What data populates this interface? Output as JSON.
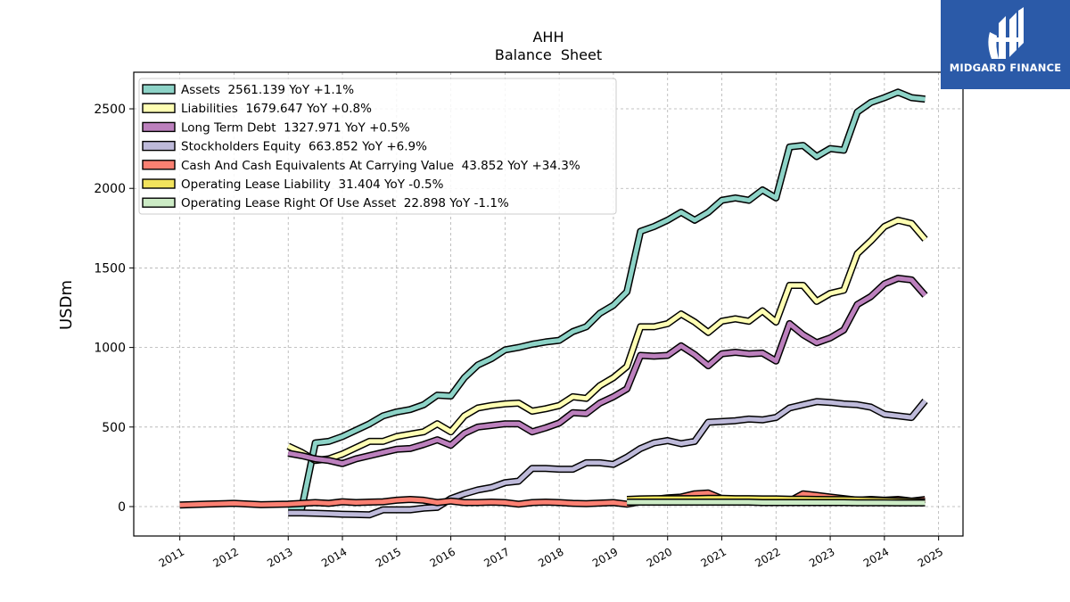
{
  "brand": {
    "name": "MIDGARD FINANCE",
    "bg": "#2b5aa8"
  },
  "chart_data": {
    "type": "line",
    "title": "AHH",
    "subtitle": "Balance  Sheet",
    "xlabel": "",
    "ylabel": "USDm",
    "xlim": [
      2010.15,
      2025.45
    ],
    "ylim": [
      -185,
      2730
    ],
    "yticks": [
      0,
      500,
      1000,
      1500,
      2000,
      2500
    ],
    "xticks": [
      "2011",
      "2012",
      "2013",
      "2014",
      "2015",
      "2016",
      "2017",
      "2018",
      "2019",
      "2020",
      "2021",
      "2022",
      "2023",
      "2024",
      "2025"
    ],
    "grid": true,
    "legend_position": "top-left",
    "series": [
      {
        "name": "Assets",
        "legend": "Assets  2561.139 YoY +1.1%",
        "color": "#8dd3c7",
        "points": [
          [
            2013.0,
            -10
          ],
          [
            2013.25,
            -10
          ],
          [
            2013.5,
            400
          ],
          [
            2013.75,
            410
          ],
          [
            2014.0,
            440
          ],
          [
            2014.25,
            480
          ],
          [
            2014.5,
            520
          ],
          [
            2014.75,
            570
          ],
          [
            2015.0,
            595
          ],
          [
            2015.25,
            610
          ],
          [
            2015.5,
            640
          ],
          [
            2015.75,
            700
          ],
          [
            2016.0,
            695
          ],
          [
            2016.25,
            810
          ],
          [
            2016.5,
            890
          ],
          [
            2016.75,
            930
          ],
          [
            2017.0,
            985
          ],
          [
            2017.25,
            1000
          ],
          [
            2017.5,
            1020
          ],
          [
            2017.75,
            1035
          ],
          [
            2018.0,
            1045
          ],
          [
            2018.25,
            1100
          ],
          [
            2018.5,
            1130
          ],
          [
            2018.75,
            1215
          ],
          [
            2019.0,
            1265
          ],
          [
            2019.25,
            1350
          ],
          [
            2019.5,
            1730
          ],
          [
            2019.75,
            1760
          ],
          [
            2020.0,
            1800
          ],
          [
            2020.25,
            1850
          ],
          [
            2020.5,
            1800
          ],
          [
            2020.75,
            1850
          ],
          [
            2021.0,
            1925
          ],
          [
            2021.25,
            1940
          ],
          [
            2021.5,
            1925
          ],
          [
            2021.75,
            1990
          ],
          [
            2022.0,
            1940
          ],
          [
            2022.25,
            2260
          ],
          [
            2022.5,
            2270
          ],
          [
            2022.75,
            2200
          ],
          [
            2023.0,
            2250
          ],
          [
            2023.25,
            2240
          ],
          [
            2023.5,
            2480
          ],
          [
            2023.75,
            2540
          ],
          [
            2024.0,
            2570
          ],
          [
            2024.25,
            2605
          ],
          [
            2024.5,
            2570
          ],
          [
            2024.75,
            2561
          ]
        ]
      },
      {
        "name": "Liabilities",
        "legend": "Liabilities  1679.647 YoY +0.8%",
        "color": "#ffffb3",
        "points": [
          [
            2013.0,
            380
          ],
          [
            2013.25,
            340
          ],
          [
            2013.5,
            290
          ],
          [
            2013.75,
            300
          ],
          [
            2014.0,
            330
          ],
          [
            2014.25,
            370
          ],
          [
            2014.5,
            410
          ],
          [
            2014.75,
            410
          ],
          [
            2015.0,
            440
          ],
          [
            2015.25,
            455
          ],
          [
            2015.5,
            470
          ],
          [
            2015.75,
            520
          ],
          [
            2016.0,
            470
          ],
          [
            2016.25,
            570
          ],
          [
            2016.5,
            620
          ],
          [
            2016.75,
            635
          ],
          [
            2017.0,
            645
          ],
          [
            2017.25,
            650
          ],
          [
            2017.5,
            600
          ],
          [
            2017.75,
            615
          ],
          [
            2018.0,
            635
          ],
          [
            2018.25,
            690
          ],
          [
            2018.5,
            680
          ],
          [
            2018.75,
            760
          ],
          [
            2019.0,
            810
          ],
          [
            2019.25,
            880
          ],
          [
            2019.5,
            1130
          ],
          [
            2019.75,
            1130
          ],
          [
            2020.0,
            1150
          ],
          [
            2020.25,
            1210
          ],
          [
            2020.5,
            1160
          ],
          [
            2020.75,
            1095
          ],
          [
            2021.0,
            1165
          ],
          [
            2021.25,
            1180
          ],
          [
            2021.5,
            1165
          ],
          [
            2021.75,
            1230
          ],
          [
            2022.0,
            1160
          ],
          [
            2022.25,
            1390
          ],
          [
            2022.5,
            1390
          ],
          [
            2022.75,
            1290
          ],
          [
            2023.0,
            1340
          ],
          [
            2023.25,
            1360
          ],
          [
            2023.5,
            1590
          ],
          [
            2023.75,
            1670
          ],
          [
            2024.0,
            1760
          ],
          [
            2024.25,
            1800
          ],
          [
            2024.5,
            1780
          ],
          [
            2024.75,
            1680
          ]
        ]
      },
      {
        "name": "Long Term Debt",
        "legend": "Long Term Debt  1327.971 YoY +0.5%",
        "color": "#bc80bd",
        "points": [
          [
            2013.0,
            335
          ],
          [
            2013.25,
            320
          ],
          [
            2013.5,
            300
          ],
          [
            2013.75,
            290
          ],
          [
            2014.0,
            270
          ],
          [
            2014.25,
            300
          ],
          [
            2014.5,
            320
          ],
          [
            2014.75,
            340
          ],
          [
            2015.0,
            360
          ],
          [
            2015.25,
            365
          ],
          [
            2015.5,
            390
          ],
          [
            2015.75,
            420
          ],
          [
            2016.0,
            385
          ],
          [
            2016.25,
            460
          ],
          [
            2016.5,
            500
          ],
          [
            2016.75,
            510
          ],
          [
            2017.0,
            520
          ],
          [
            2017.25,
            520
          ],
          [
            2017.5,
            470
          ],
          [
            2017.75,
            495
          ],
          [
            2018.0,
            525
          ],
          [
            2018.25,
            590
          ],
          [
            2018.5,
            585
          ],
          [
            2018.75,
            650
          ],
          [
            2019.0,
            690
          ],
          [
            2019.25,
            740
          ],
          [
            2019.5,
            950
          ],
          [
            2019.75,
            945
          ],
          [
            2020.0,
            950
          ],
          [
            2020.25,
            1010
          ],
          [
            2020.5,
            955
          ],
          [
            2020.75,
            885
          ],
          [
            2021.0,
            960
          ],
          [
            2021.25,
            970
          ],
          [
            2021.5,
            960
          ],
          [
            2021.75,
            965
          ],
          [
            2022.0,
            915
          ],
          [
            2022.25,
            1150
          ],
          [
            2022.5,
            1080
          ],
          [
            2022.75,
            1030
          ],
          [
            2023.0,
            1060
          ],
          [
            2023.25,
            1110
          ],
          [
            2023.5,
            1270
          ],
          [
            2023.75,
            1320
          ],
          [
            2024.0,
            1400
          ],
          [
            2024.25,
            1435
          ],
          [
            2024.5,
            1425
          ],
          [
            2024.75,
            1328
          ]
        ]
      },
      {
        "name": "Stockholders Equity",
        "legend": "Stockholders Equity  663.852 YoY +6.9%",
        "color": "#bebada",
        "points": [
          [
            2013.0,
            -40
          ],
          [
            2013.25,
            -40
          ],
          [
            2013.5,
            -42
          ],
          [
            2013.75,
            -45
          ],
          [
            2014.0,
            -48
          ],
          [
            2014.25,
            -50
          ],
          [
            2014.5,
            -52
          ],
          [
            2014.75,
            -20
          ],
          [
            2015.0,
            -20
          ],
          [
            2015.25,
            -20
          ],
          [
            2015.5,
            -10
          ],
          [
            2015.75,
            -5
          ],
          [
            2016.0,
            50
          ],
          [
            2016.25,
            80
          ],
          [
            2016.5,
            105
          ],
          [
            2016.75,
            120
          ],
          [
            2017.0,
            150
          ],
          [
            2017.25,
            160
          ],
          [
            2017.5,
            240
          ],
          [
            2017.75,
            240
          ],
          [
            2018.0,
            235
          ],
          [
            2018.25,
            235
          ],
          [
            2018.5,
            275
          ],
          [
            2018.75,
            275
          ],
          [
            2019.0,
            265
          ],
          [
            2019.25,
            310
          ],
          [
            2019.5,
            365
          ],
          [
            2019.75,
            400
          ],
          [
            2020.0,
            415
          ],
          [
            2020.25,
            395
          ],
          [
            2020.5,
            410
          ],
          [
            2020.75,
            530
          ],
          [
            2021.0,
            535
          ],
          [
            2021.25,
            540
          ],
          [
            2021.5,
            550
          ],
          [
            2021.75,
            545
          ],
          [
            2022.0,
            560
          ],
          [
            2022.25,
            620
          ],
          [
            2022.5,
            640
          ],
          [
            2022.75,
            660
          ],
          [
            2023.0,
            655
          ],
          [
            2023.25,
            645
          ],
          [
            2023.5,
            640
          ],
          [
            2023.75,
            625
          ],
          [
            2024.0,
            580
          ],
          [
            2024.25,
            570
          ],
          [
            2024.5,
            560
          ],
          [
            2024.75,
            664
          ]
        ]
      },
      {
        "name": "Cash And Cash Equivalents At Carrying Value",
        "legend": "Cash And Cash Equivalents At Carrying Value  43.852 YoY +34.3%",
        "color": "#fb8072",
        "points": [
          [
            2011.0,
            10
          ],
          [
            2011.5,
            15
          ],
          [
            2012.0,
            20
          ],
          [
            2012.5,
            12
          ],
          [
            2013.0,
            15
          ],
          [
            2013.25,
            20
          ],
          [
            2013.5,
            25
          ],
          [
            2013.75,
            20
          ],
          [
            2014.0,
            30
          ],
          [
            2014.25,
            25
          ],
          [
            2014.5,
            28
          ],
          [
            2014.75,
            30
          ],
          [
            2015.0,
            40
          ],
          [
            2015.25,
            45
          ],
          [
            2015.5,
            40
          ],
          [
            2015.75,
            25
          ],
          [
            2016.0,
            35
          ],
          [
            2016.25,
            25
          ],
          [
            2016.5,
            25
          ],
          [
            2016.75,
            28
          ],
          [
            2017.0,
            25
          ],
          [
            2017.25,
            15
          ],
          [
            2017.5,
            25
          ],
          [
            2017.75,
            28
          ],
          [
            2018.0,
            25
          ],
          [
            2018.25,
            20
          ],
          [
            2018.5,
            18
          ],
          [
            2018.75,
            22
          ],
          [
            2019.0,
            25
          ],
          [
            2019.25,
            15
          ],
          [
            2019.5,
            30
          ],
          [
            2019.75,
            45
          ],
          [
            2020.0,
            55
          ],
          [
            2020.25,
            60
          ],
          [
            2020.5,
            80
          ],
          [
            2020.75,
            85
          ],
          [
            2021.0,
            50
          ],
          [
            2021.25,
            40
          ],
          [
            2021.5,
            45
          ],
          [
            2021.75,
            35
          ],
          [
            2022.0,
            40
          ],
          [
            2022.25,
            35
          ],
          [
            2022.5,
            80
          ],
          [
            2022.75,
            70
          ],
          [
            2023.0,
            60
          ],
          [
            2023.25,
            50
          ],
          [
            2023.5,
            40
          ],
          [
            2023.75,
            45
          ],
          [
            2024.0,
            40
          ],
          [
            2024.25,
            45
          ],
          [
            2024.5,
            35
          ],
          [
            2024.75,
            44
          ]
        ]
      },
      {
        "name": "Operating Lease Liability",
        "legend": "Operating Lease Liability  31.404 YoY -0.5%",
        "color": "#f2e35c",
        "points": [
          [
            2019.25,
            45
          ],
          [
            2019.5,
            48
          ],
          [
            2019.75,
            50
          ],
          [
            2020.0,
            50
          ],
          [
            2020.25,
            50
          ],
          [
            2020.5,
            50
          ],
          [
            2020.75,
            52
          ],
          [
            2021.0,
            52
          ],
          [
            2021.25,
            50
          ],
          [
            2021.5,
            50
          ],
          [
            2021.75,
            48
          ],
          [
            2022.0,
            48
          ],
          [
            2022.25,
            46
          ],
          [
            2022.5,
            46
          ],
          [
            2022.75,
            45
          ],
          [
            2023.0,
            44
          ],
          [
            2023.25,
            44
          ],
          [
            2023.5,
            42
          ],
          [
            2023.75,
            40
          ],
          [
            2024.0,
            38
          ],
          [
            2024.25,
            35
          ],
          [
            2024.5,
            33
          ],
          [
            2024.75,
            31
          ]
        ]
      },
      {
        "name": "Operating Lease Right Of Use Asset",
        "legend": "Operating Lease Right Of Use Asset  22.898 YoY -1.1%",
        "color": "#ccebc5",
        "points": [
          [
            2019.25,
            28
          ],
          [
            2019.5,
            28
          ],
          [
            2019.75,
            28
          ],
          [
            2020.0,
            28
          ],
          [
            2020.25,
            28
          ],
          [
            2020.5,
            28
          ],
          [
            2020.75,
            28
          ],
          [
            2021.0,
            28
          ],
          [
            2021.25,
            28
          ],
          [
            2021.5,
            28
          ],
          [
            2021.75,
            25
          ],
          [
            2022.0,
            25
          ],
          [
            2022.25,
            25
          ],
          [
            2022.5,
            25
          ],
          [
            2022.75,
            25
          ],
          [
            2023.0,
            25
          ],
          [
            2023.25,
            25
          ],
          [
            2023.5,
            24
          ],
          [
            2023.75,
            24
          ],
          [
            2024.0,
            24
          ],
          [
            2024.25,
            23
          ],
          [
            2024.5,
            23
          ],
          [
            2024.75,
            23
          ]
        ]
      }
    ]
  }
}
